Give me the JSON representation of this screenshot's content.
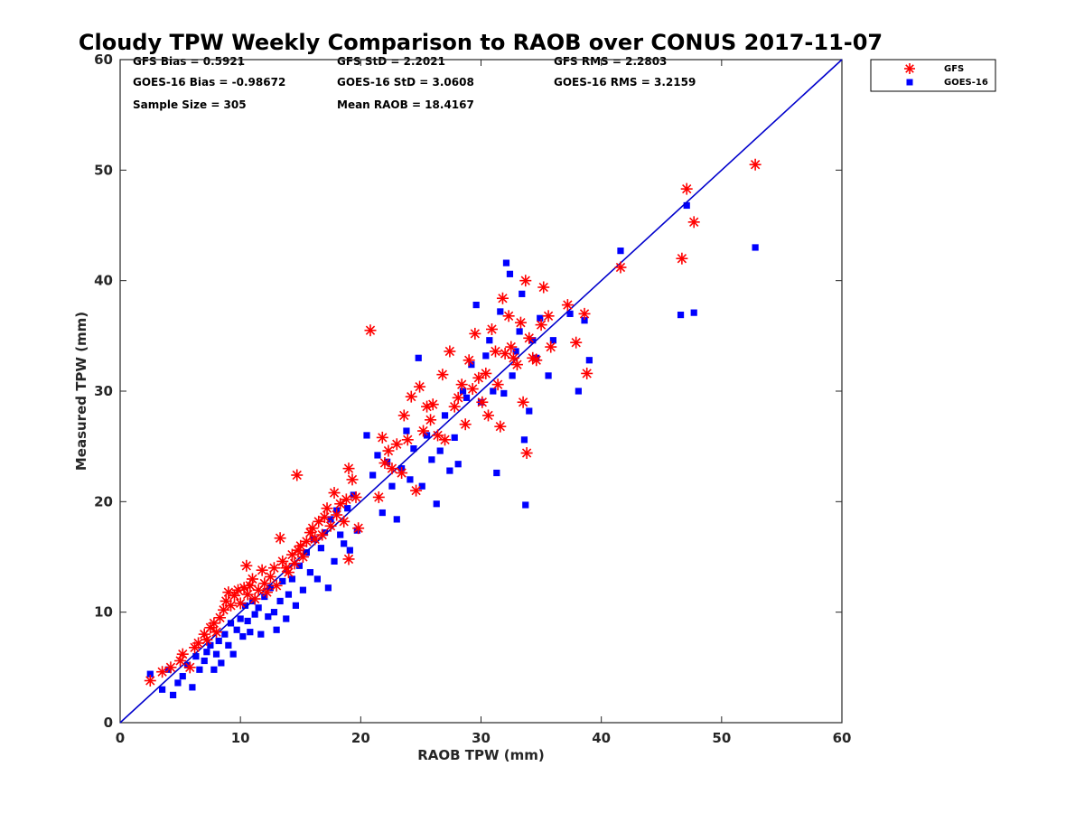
{
  "chart_data": {
    "type": "scatter",
    "title": "Cloudy TPW Weekly Comparison to RAOB over CONUS 2017-11-07",
    "xlabel": "RAOB TPW (mm)",
    "ylabel": "Measured TPW (mm)",
    "xlim": [
      0,
      60
    ],
    "ylim": [
      0,
      60
    ],
    "xticks": [
      "0",
      "10",
      "20",
      "30",
      "40",
      "50",
      "60"
    ],
    "yticks": [
      "0",
      "10",
      "20",
      "30",
      "40",
      "50",
      "60"
    ],
    "grid": false,
    "legend_position": "top-right",
    "reference_line": {
      "from": [
        0,
        0
      ],
      "to": [
        60,
        60
      ],
      "color": "#0000cc"
    },
    "stats": [
      [
        "GFS Bias = 0.5921",
        "GFS StD = 2.2021",
        "GFS RMS = 2.2803"
      ],
      [
        "GOES-16 Bias = -0.98672",
        "GOES-16 StD = 3.0608",
        "GOES-16 RMS = 3.2159"
      ],
      [
        "Sample Size = 305",
        "Mean RAOB = 18.4167",
        ""
      ]
    ],
    "series": [
      {
        "name": "GFS",
        "marker": "asterisk",
        "color": "#ff0000",
        "points": [
          [
            2.5,
            3.8
          ],
          [
            3.5,
            4.6
          ],
          [
            4.2,
            5.0
          ],
          [
            5.0,
            5.6
          ],
          [
            5.2,
            6.2
          ],
          [
            5.8,
            5.0
          ],
          [
            6.2,
            6.8
          ],
          [
            6.5,
            7.2
          ],
          [
            7.0,
            8.0
          ],
          [
            7.2,
            7.5
          ],
          [
            7.5,
            8.6
          ],
          [
            7.8,
            9.0
          ],
          [
            8.0,
            8.2
          ],
          [
            8.3,
            9.5
          ],
          [
            8.6,
            10.2
          ],
          [
            8.8,
            11.0
          ],
          [
            9.0,
            11.8
          ],
          [
            9.2,
            10.6
          ],
          [
            9.5,
            11.5
          ],
          [
            9.8,
            12.0
          ],
          [
            10.0,
            10.8
          ],
          [
            10.3,
            12.2
          ],
          [
            10.5,
            14.2
          ],
          [
            10.6,
            11.6
          ],
          [
            10.8,
            12.4
          ],
          [
            11.0,
            13.0
          ],
          [
            11.2,
            11.2
          ],
          [
            11.5,
            12.0
          ],
          [
            11.8,
            13.8
          ],
          [
            12.0,
            12.6
          ],
          [
            12.2,
            11.8
          ],
          [
            12.5,
            13.2
          ],
          [
            12.8,
            14.0
          ],
          [
            13.0,
            12.4
          ],
          [
            13.3,
            16.7
          ],
          [
            13.5,
            14.6
          ],
          [
            13.8,
            14.0
          ],
          [
            14.0,
            13.6
          ],
          [
            14.3,
            15.2
          ],
          [
            14.5,
            14.4
          ],
          [
            14.7,
            22.4
          ],
          [
            14.8,
            15.6
          ],
          [
            15.0,
            16.0
          ],
          [
            15.2,
            15.0
          ],
          [
            15.5,
            16.4
          ],
          [
            15.8,
            17.2
          ],
          [
            16.0,
            17.6
          ],
          [
            16.2,
            16.6
          ],
          [
            16.5,
            18.2
          ],
          [
            16.8,
            17.0
          ],
          [
            17.0,
            18.6
          ],
          [
            17.2,
            19.4
          ],
          [
            17.5,
            17.8
          ],
          [
            17.8,
            20.8
          ],
          [
            18.0,
            18.8
          ],
          [
            18.3,
            19.8
          ],
          [
            18.6,
            18.2
          ],
          [
            18.8,
            20.2
          ],
          [
            19.0,
            23.0
          ],
          [
            19.0,
            14.8
          ],
          [
            19.3,
            22.0
          ],
          [
            19.6,
            20.4
          ],
          [
            19.8,
            17.6
          ],
          [
            20.8,
            35.5
          ],
          [
            21.5,
            20.4
          ],
          [
            21.8,
            25.8
          ],
          [
            22.0,
            23.5
          ],
          [
            22.3,
            24.6
          ],
          [
            22.6,
            23.0
          ],
          [
            23.0,
            25.2
          ],
          [
            23.4,
            22.6
          ],
          [
            23.6,
            27.8
          ],
          [
            23.9,
            25.6
          ],
          [
            24.2,
            29.5
          ],
          [
            24.6,
            21.0
          ],
          [
            24.9,
            30.4
          ],
          [
            25.2,
            26.4
          ],
          [
            25.5,
            28.6
          ],
          [
            25.8,
            27.4
          ],
          [
            26.0,
            28.8
          ],
          [
            26.4,
            26.0
          ],
          [
            26.8,
            31.5
          ],
          [
            27.0,
            25.6
          ],
          [
            27.4,
            33.6
          ],
          [
            27.8,
            28.6
          ],
          [
            28.1,
            29.4
          ],
          [
            28.4,
            30.6
          ],
          [
            28.7,
            27.0
          ],
          [
            29.0,
            32.8
          ],
          [
            29.3,
            30.2
          ],
          [
            29.5,
            35.2
          ],
          [
            29.8,
            31.2
          ],
          [
            30.1,
            29.0
          ],
          [
            30.4,
            31.6
          ],
          [
            30.6,
            27.8
          ],
          [
            30.9,
            35.6
          ],
          [
            31.2,
            33.6
          ],
          [
            31.4,
            30.6
          ],
          [
            31.6,
            26.8
          ],
          [
            31.8,
            38.4
          ],
          [
            32.0,
            33.4
          ],
          [
            32.3,
            36.8
          ],
          [
            32.5,
            34.0
          ],
          [
            32.7,
            33.0
          ],
          [
            33.0,
            32.4
          ],
          [
            33.3,
            36.2
          ],
          [
            33.5,
            29.0
          ],
          [
            33.7,
            40.0
          ],
          [
            33.8,
            24.4
          ],
          [
            34.0,
            34.8
          ],
          [
            34.3,
            33.0
          ],
          [
            34.6,
            32.8
          ],
          [
            35.0,
            36.0
          ],
          [
            35.2,
            39.4
          ],
          [
            35.6,
            36.8
          ],
          [
            35.8,
            34.0
          ],
          [
            37.2,
            37.8
          ],
          [
            37.9,
            34.4
          ],
          [
            38.6,
            37.0
          ],
          [
            38.8,
            31.6
          ],
          [
            41.6,
            41.2
          ],
          [
            46.7,
            42.0
          ],
          [
            47.1,
            48.3
          ],
          [
            47.7,
            45.3
          ],
          [
            52.8,
            50.5
          ]
        ]
      },
      {
        "name": "GOES-16",
        "marker": "square",
        "color": "#0000ff",
        "points": [
          [
            2.5,
            4.4
          ],
          [
            3.5,
            3.0
          ],
          [
            4.0,
            4.8
          ],
          [
            4.4,
            2.5
          ],
          [
            4.8,
            3.6
          ],
          [
            5.2,
            4.2
          ],
          [
            5.6,
            5.2
          ],
          [
            6.0,
            3.2
          ],
          [
            6.3,
            6.0
          ],
          [
            6.6,
            4.8
          ],
          [
            7.0,
            5.6
          ],
          [
            7.2,
            6.4
          ],
          [
            7.5,
            7.0
          ],
          [
            7.8,
            4.8
          ],
          [
            8.0,
            6.2
          ],
          [
            8.2,
            7.4
          ],
          [
            8.4,
            5.4
          ],
          [
            8.7,
            8.0
          ],
          [
            9.0,
            7.0
          ],
          [
            9.2,
            9.0
          ],
          [
            9.4,
            6.2
          ],
          [
            9.7,
            8.4
          ],
          [
            10.0,
            9.4
          ],
          [
            10.2,
            7.8
          ],
          [
            10.4,
            10.6
          ],
          [
            10.6,
            9.2
          ],
          [
            10.8,
            8.2
          ],
          [
            11.0,
            11.0
          ],
          [
            11.2,
            9.8
          ],
          [
            11.5,
            10.4
          ],
          [
            11.7,
            8.0
          ],
          [
            12.0,
            11.4
          ],
          [
            12.3,
            9.6
          ],
          [
            12.5,
            12.2
          ],
          [
            12.8,
            10.0
          ],
          [
            13.0,
            8.4
          ],
          [
            13.3,
            11.0
          ],
          [
            13.5,
            12.8
          ],
          [
            13.8,
            9.4
          ],
          [
            14.0,
            11.6
          ],
          [
            14.3,
            13.0
          ],
          [
            14.6,
            10.6
          ],
          [
            14.9,
            14.2
          ],
          [
            15.2,
            12.0
          ],
          [
            15.5,
            15.4
          ],
          [
            15.8,
            13.6
          ],
          [
            16.1,
            16.6
          ],
          [
            16.4,
            13.0
          ],
          [
            16.7,
            15.8
          ],
          [
            17.0,
            17.2
          ],
          [
            17.3,
            12.2
          ],
          [
            17.5,
            18.4
          ],
          [
            17.8,
            14.6
          ],
          [
            18.0,
            19.2
          ],
          [
            18.3,
            17.0
          ],
          [
            18.6,
            16.2
          ],
          [
            18.9,
            19.4
          ],
          [
            19.1,
            15.6
          ],
          [
            19.4,
            20.6
          ],
          [
            19.7,
            17.4
          ],
          [
            20.5,
            26.0
          ],
          [
            21.0,
            22.4
          ],
          [
            21.4,
            24.2
          ],
          [
            21.8,
            19.0
          ],
          [
            22.2,
            23.6
          ],
          [
            22.6,
            21.4
          ],
          [
            23.0,
            18.4
          ],
          [
            23.4,
            23.0
          ],
          [
            23.8,
            26.4
          ],
          [
            24.1,
            22.0
          ],
          [
            24.4,
            24.8
          ],
          [
            24.8,
            33.0
          ],
          [
            25.1,
            21.4
          ],
          [
            25.5,
            26.0
          ],
          [
            25.9,
            23.8
          ],
          [
            26.3,
            19.8
          ],
          [
            26.6,
            24.6
          ],
          [
            27.0,
            27.8
          ],
          [
            27.4,
            22.8
          ],
          [
            27.8,
            25.8
          ],
          [
            28.1,
            23.4
          ],
          [
            28.5,
            30.0
          ],
          [
            28.8,
            29.4
          ],
          [
            29.2,
            32.4
          ],
          [
            29.6,
            37.8
          ],
          [
            30.0,
            29.0
          ],
          [
            30.4,
            33.2
          ],
          [
            30.7,
            34.6
          ],
          [
            31.0,
            30.0
          ],
          [
            31.3,
            22.6
          ],
          [
            31.6,
            37.2
          ],
          [
            31.9,
            29.8
          ],
          [
            32.1,
            41.6
          ],
          [
            32.4,
            40.6
          ],
          [
            32.6,
            31.4
          ],
          [
            32.9,
            33.6
          ],
          [
            33.2,
            35.4
          ],
          [
            33.4,
            38.8
          ],
          [
            33.6,
            25.6
          ],
          [
            33.7,
            19.7
          ],
          [
            34.0,
            28.2
          ],
          [
            34.3,
            34.6
          ],
          [
            34.6,
            33.0
          ],
          [
            34.9,
            36.6
          ],
          [
            35.6,
            31.4
          ],
          [
            36.0,
            34.6
          ],
          [
            37.4,
            37.0
          ],
          [
            38.1,
            30.0
          ],
          [
            38.6,
            36.4
          ],
          [
            39.0,
            32.8
          ],
          [
            41.6,
            42.7
          ],
          [
            46.6,
            36.9
          ],
          [
            47.1,
            46.8
          ],
          [
            47.7,
            37.1
          ],
          [
            52.8,
            43.0
          ]
        ]
      }
    ]
  }
}
